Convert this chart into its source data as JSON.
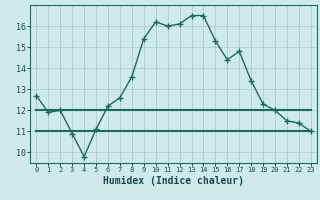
{
  "title": "",
  "xlabel": "Humidex (Indice chaleur)",
  "x": [
    0,
    1,
    2,
    3,
    4,
    5,
    6,
    7,
    8,
    9,
    10,
    11,
    12,
    13,
    14,
    15,
    16,
    17,
    18,
    19,
    20,
    21,
    22,
    23
  ],
  "y_main": [
    12.7,
    11.9,
    12.0,
    10.9,
    9.8,
    11.1,
    12.2,
    12.6,
    13.6,
    15.4,
    16.2,
    16.0,
    16.1,
    16.5,
    16.5,
    15.3,
    14.4,
    14.8,
    13.4,
    12.3,
    12.0,
    11.5,
    11.4,
    11.0
  ],
  "y_max_line": 12.0,
  "y_min_line": 11.0,
  "line_color": "#1a6b5a",
  "bg_color": "#ceeaea",
  "grid_color_major": "#b0cccc",
  "grid_color_minor": "#c8e2e2",
  "ylim": [
    9.5,
    17.0
  ],
  "yticks": [
    10,
    11,
    12,
    13,
    14,
    15,
    16
  ],
  "xlim": [
    -0.5,
    23.5
  ]
}
